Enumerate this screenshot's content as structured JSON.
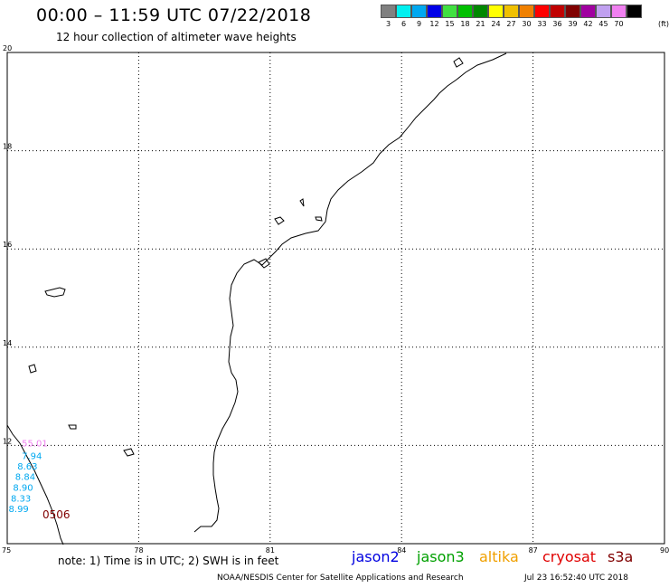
{
  "header": {
    "title": "00:00 – 11:59 UTC 07/22/2018",
    "subtitle": "12 hour collection of altimeter wave heights"
  },
  "legend": {
    "swatches": [
      {
        "color": "#808080",
        "label": "3"
      },
      {
        "color": "#00f0f0",
        "label": "6"
      },
      {
        "color": "#00a8f0",
        "label": "9"
      },
      {
        "color": "#0000e8",
        "label": "12"
      },
      {
        "color": "#40e040",
        "label": "15"
      },
      {
        "color": "#00c000",
        "label": "18"
      },
      {
        "color": "#008800",
        "label": "21"
      },
      {
        "color": "#ffff00",
        "label": "24"
      },
      {
        "color": "#f0c000",
        "label": "27"
      },
      {
        "color": "#f08000",
        "label": "30"
      },
      {
        "color": "#ff0000",
        "label": "33"
      },
      {
        "color": "#c00000",
        "label": "36"
      },
      {
        "color": "#800000",
        "label": "39"
      },
      {
        "color": "#a000a0",
        "label": "42"
      },
      {
        "color": "#c0a0f0",
        "label": "45"
      },
      {
        "color": "#f080f0",
        "label": "70"
      },
      {
        "color": "#000000",
        "label": ""
      }
    ],
    "unit": "(ft)"
  },
  "map": {
    "lon_range": [
      75,
      90
    ],
    "lat_range": [
      10,
      20
    ],
    "lon_ticks": [
      "75",
      "78",
      "81",
      "84",
      "87",
      "90"
    ],
    "lat_ticks": [
      "10",
      "12",
      "14",
      "16",
      "18",
      "20"
    ],
    "grid": "dotted",
    "track_label": "0506",
    "observations": [
      {
        "value": "55.01",
        "color": "#f080f0",
        "lon": 75.6,
        "lat": 12.05
      },
      {
        "value": "7.94",
        "color": "#00a8f0",
        "lon": 75.6,
        "lat": 11.8
      },
      {
        "value": "8.63",
        "color": "#00a8f0",
        "lon": 75.5,
        "lat": 11.58
      },
      {
        "value": "8.84",
        "color": "#00a8f0",
        "lon": 75.45,
        "lat": 11.37
      },
      {
        "value": "8.90",
        "color": "#00a8f0",
        "lon": 75.4,
        "lat": 11.15
      },
      {
        "value": "8.33",
        "color": "#00a8f0",
        "lon": 75.35,
        "lat": 10.93
      },
      {
        "value": "8.99",
        "color": "#00a8f0",
        "lon": 75.3,
        "lat": 10.72
      }
    ]
  },
  "footer": {
    "note": "note: 1) Time is in UTC; 2) SWH is in feet",
    "satellites": [
      {
        "name": "jason2",
        "color": "#0000e0"
      },
      {
        "name": "jason3",
        "color": "#00a000"
      },
      {
        "name": "altika",
        "color": "#f0a000"
      },
      {
        "name": "cryosat",
        "color": "#e00000"
      },
      {
        "name": "s3a",
        "color": "#800000"
      }
    ],
    "credit": "NOAA/NESDIS Center for Satellite Applications and Research",
    "timestamp": "Jul 23 16:52:40 UTC 2018"
  }
}
